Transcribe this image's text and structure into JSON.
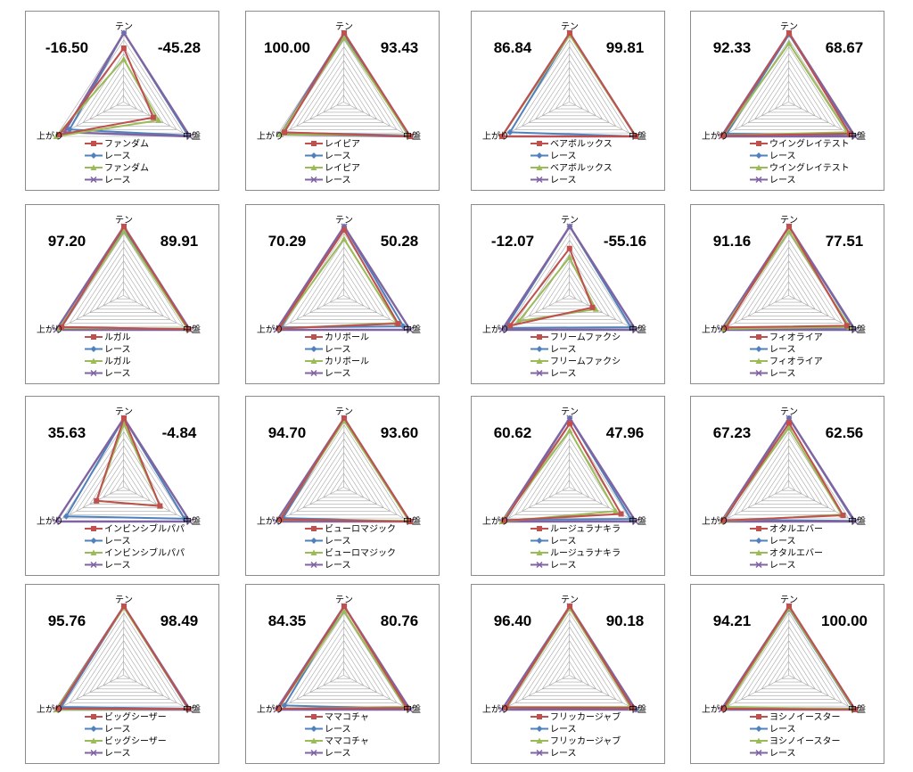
{
  "labels": {
    "top": "テン",
    "right": "中盤",
    "left": "上がり",
    "race": "レース"
  },
  "colors": {
    "horse": "#c0504d",
    "race": "#4f81bd",
    "horse_alt": "#9bbb59",
    "race_alt": "#8064a2",
    "grid": "#a6a6a6"
  },
  "chart_data": [
    {
      "type": "radar",
      "horse": "ファンダム",
      "left_score": "-16.50",
      "right_score": "-45.28",
      "series": [
        {
          "name": "ファンダム",
          "values": [
            0.78,
            0.45,
            0.95
          ]
        },
        {
          "name": "レース",
          "values": [
            1.0,
            0.97,
            0.8
          ]
        },
        {
          "name": "ファンダム",
          "values": [
            0.62,
            0.53,
            1.0
          ]
        },
        {
          "name": "レース",
          "values": [
            1.0,
            1.0,
            0.88
          ]
        }
      ]
    },
    {
      "type": "radar",
      "horse": "レイピア",
      "left_score": "100.00",
      "right_score": "93.43",
      "series": [
        {
          "name": "レイピア",
          "values": [
            1.0,
            1.0,
            0.88
          ]
        },
        {
          "name": "レース",
          "values": [
            0.98,
            0.97,
            0.89
          ]
        },
        {
          "name": "レイピア",
          "values": [
            0.93,
            0.98,
            0.94
          ]
        },
        {
          "name": "レース",
          "values": [
            1.0,
            1.0,
            0.94
          ]
        }
      ]
    },
    {
      "type": "radar",
      "horse": "ベアボルックス",
      "left_score": "86.84",
      "right_score": "99.81",
      "series": [
        {
          "name": "ベアボルックス",
          "values": [
            1.0,
            1.0,
            1.0
          ]
        },
        {
          "name": "レース",
          "values": [
            0.98,
            1.0,
            0.88
          ]
        },
        {
          "name": "ベアボルックス",
          "values": [
            0.97,
            1.0,
            1.0
          ]
        },
        {
          "name": "レース",
          "values": [
            1.0,
            1.0,
            1.0
          ]
        }
      ]
    },
    {
      "type": "radar",
      "horse": "ウイングレイテスト",
      "left_score": "92.33",
      "right_score": "68.67",
      "series": [
        {
          "name": "ウイングレイテスト",
          "values": [
            1.0,
            0.92,
            0.98
          ]
        },
        {
          "name": "レース",
          "values": [
            0.98,
            0.98,
            0.92
          ]
        },
        {
          "name": "ウイングレイテスト",
          "values": [
            0.85,
            0.88,
            0.97
          ]
        },
        {
          "name": "レース",
          "values": [
            1.0,
            1.0,
            1.0
          ]
        }
      ]
    },
    {
      "type": "radar",
      "horse": "ルガル",
      "left_score": "97.20",
      "right_score": "89.91",
      "series": [
        {
          "name": "ルガル",
          "values": [
            1.0,
            0.98,
            0.92
          ]
        },
        {
          "name": "レース",
          "values": [
            0.97,
            0.98,
            0.92
          ]
        },
        {
          "name": "ルガル",
          "values": [
            0.93,
            0.96,
            0.95
          ]
        },
        {
          "name": "レース",
          "values": [
            1.0,
            1.0,
            1.0
          ]
        }
      ]
    },
    {
      "type": "radar",
      "horse": "カリボール",
      "left_score": "70.29",
      "right_score": "50.28",
      "series": [
        {
          "name": "カリボール",
          "values": [
            0.95,
            0.82,
            0.96
          ]
        },
        {
          "name": "レース",
          "values": [
            1.0,
            0.9,
            0.93
          ]
        },
        {
          "name": "カリボール",
          "values": [
            0.82,
            0.8,
            0.96
          ]
        },
        {
          "name": "レース",
          "values": [
            1.0,
            1.0,
            1.0
          ]
        }
      ]
    },
    {
      "type": "radar",
      "horse": "フリームファクシ",
      "left_score": "-12.07",
      "right_score": "-55.16",
      "series": [
        {
          "name": "フリームファクシ",
          "values": [
            0.68,
            0.35,
            0.88
          ]
        },
        {
          "name": "レース",
          "values": [
            1.0,
            0.93,
            0.95
          ]
        },
        {
          "name": "フリームファクシ",
          "values": [
            0.55,
            0.4,
            0.75
          ]
        },
        {
          "name": "レース",
          "values": [
            1.0,
            1.0,
            1.0
          ]
        }
      ]
    },
    {
      "type": "radar",
      "horse": "フィオライア",
      "left_score": "91.16",
      "right_score": "77.51",
      "series": [
        {
          "name": "フィオライア",
          "values": [
            1.0,
            0.88,
            0.93
          ]
        },
        {
          "name": "レース",
          "values": [
            1.0,
            0.98,
            0.95
          ]
        },
        {
          "name": "フィオライア",
          "values": [
            0.93,
            0.92,
            0.97
          ]
        },
        {
          "name": "レース",
          "values": [
            1.0,
            1.0,
            1.0
          ]
        }
      ]
    },
    {
      "type": "radar",
      "horse": "インビンシブルパパ",
      "left_score": "35.63",
      "right_score": "-4.84",
      "series": [
        {
          "name": "インビンシブルパパ",
          "values": [
            1.0,
            0.55,
            0.4
          ]
        },
        {
          "name": "レース",
          "values": [
            1.0,
            0.92,
            0.85
          ]
        },
        {
          "name": "インビンシブルパパ",
          "values": [
            0.92,
            0.55,
            0.4
          ]
        },
        {
          "name": "レース",
          "values": [
            1.0,
            1.0,
            1.0
          ]
        }
      ]
    },
    {
      "type": "radar",
      "horse": "ビューロマジック",
      "left_score": "94.70",
      "right_score": "93.60",
      "series": [
        {
          "name": "ビューロマジック",
          "values": [
            1.0,
            1.0,
            0.94
          ]
        },
        {
          "name": "レース",
          "values": [
            1.0,
            1.0,
            0.9
          ]
        },
        {
          "name": "ビューロマジック",
          "values": [
            0.96,
            0.98,
            0.95
          ]
        },
        {
          "name": "レース",
          "values": [
            1.0,
            1.0,
            1.0
          ]
        }
      ]
    },
    {
      "type": "radar",
      "horse": "ルージュラナキラ",
      "left_score": "60.62",
      "right_score": "47.96",
      "series": [
        {
          "name": "ルージュラナキラ",
          "values": [
            0.92,
            0.78,
            0.97
          ]
        },
        {
          "name": "レース",
          "values": [
            1.0,
            0.93,
            0.95
          ]
        },
        {
          "name": "ルージュラナキラ",
          "values": [
            0.82,
            0.7,
            1.0
          ]
        },
        {
          "name": "レース",
          "values": [
            1.0,
            1.0,
            1.0
          ]
        }
      ]
    },
    {
      "type": "radar",
      "horse": "オタルエバー",
      "left_score": "67.23",
      "right_score": "62.56",
      "series": [
        {
          "name": "オタルエバー",
          "values": [
            0.93,
            0.82,
            0.97
          ]
        },
        {
          "name": "レース",
          "values": [
            1.0,
            0.98,
            0.95
          ]
        },
        {
          "name": "オタルエバー",
          "values": [
            0.86,
            0.8,
            0.99
          ]
        },
        {
          "name": "レース",
          "values": [
            1.0,
            1.0,
            1.0
          ]
        }
      ]
    },
    {
      "type": "radar",
      "horse": "ビッグシーザー",
      "left_score": "95.76",
      "right_score": "98.49",
      "series": [
        {
          "name": "ビッグシーザー",
          "values": [
            1.0,
            0.98,
            0.97
          ]
        },
        {
          "name": "レース",
          "values": [
            0.99,
            0.97,
            0.93
          ]
        },
        {
          "name": "ビッグシーザー",
          "values": [
            0.98,
            0.98,
            1.0
          ]
        },
        {
          "name": "レース",
          "values": [
            1.0,
            1.0,
            1.0
          ]
        }
      ]
    },
    {
      "type": "radar",
      "horse": "ママコチャ",
      "left_score": "84.35",
      "right_score": "80.76",
      "series": [
        {
          "name": "ママコチャ",
          "values": [
            1.0,
            0.95,
            0.97
          ]
        },
        {
          "name": "レース",
          "values": [
            1.0,
            0.98,
            0.88
          ]
        },
        {
          "name": "ママコチャ",
          "values": [
            0.93,
            0.93,
            0.97
          ]
        },
        {
          "name": "レース",
          "values": [
            1.0,
            1.0,
            1.0
          ]
        }
      ]
    },
    {
      "type": "radar",
      "horse": "フリッカージャブ",
      "left_score": "96.40",
      "right_score": "90.18",
      "series": [
        {
          "name": "フリッカージャブ",
          "values": [
            1.0,
            0.95,
            0.94
          ]
        },
        {
          "name": "レース",
          "values": [
            1.0,
            1.0,
            0.94
          ]
        },
        {
          "name": "フリッカージャブ",
          "values": [
            0.97,
            0.93,
            0.93
          ]
        },
        {
          "name": "レース",
          "values": [
            1.0,
            1.0,
            1.0
          ]
        }
      ]
    },
    {
      "type": "radar",
      "horse": "ヨシノイースター",
      "left_score": "94.21",
      "right_score": "100.00",
      "series": [
        {
          "name": "ヨシノイースター",
          "values": [
            1.0,
            1.0,
            0.97
          ]
        },
        {
          "name": "レース",
          "values": [
            0.96,
            0.97,
            0.95
          ]
        },
        {
          "name": "ヨシノイースター",
          "values": [
            0.97,
            0.98,
            0.93
          ]
        },
        {
          "name": "レース",
          "values": [
            1.0,
            1.0,
            1.0
          ]
        }
      ]
    }
  ]
}
